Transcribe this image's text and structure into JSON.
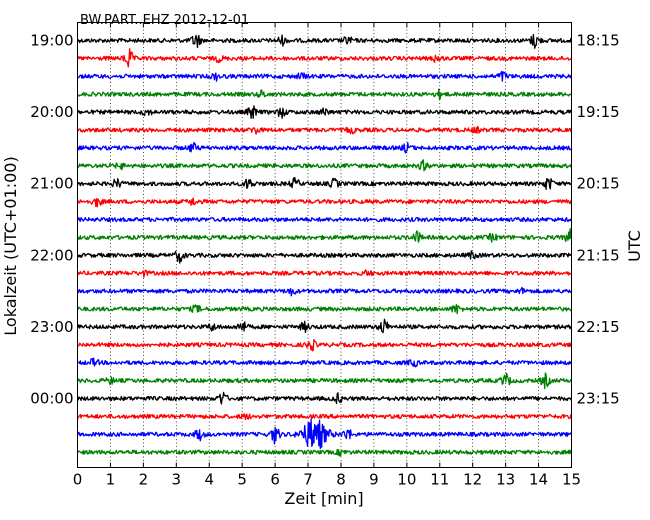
{
  "chart_data": {
    "type": "line",
    "title": "BW.PART..EHZ 2012-12-01",
    "xlabel": "Zeit  [min]",
    "ylabel_left": "Lokalzeit (UTC+01:00)",
    "ylabel_right": "UTC",
    "xlim": [
      0,
      15
    ],
    "x_ticks": [
      "0",
      "1",
      "2",
      "3",
      "4",
      "5",
      "6",
      "7",
      "8",
      "9",
      "10",
      "11",
      "12",
      "13",
      "14",
      "15"
    ],
    "grid": "vertical dotted lines at each minute",
    "left_ticks": [
      {
        "label": "19:00",
        "trace": 0
      },
      {
        "label": "20:00",
        "trace": 4
      },
      {
        "label": "21:00",
        "trace": 8
      },
      {
        "label": "22:00",
        "trace": 12
      },
      {
        "label": "23:00",
        "trace": 16
      },
      {
        "label": "00:00",
        "trace": 20
      }
    ],
    "right_ticks": [
      {
        "label": "18:15",
        "trace": 0
      },
      {
        "label": "19:15",
        "trace": 4
      },
      {
        "label": "20:15",
        "trace": 8
      },
      {
        "label": "21:15",
        "trace": 12
      },
      {
        "label": "22:15",
        "trace": 16
      },
      {
        "label": "23:15",
        "trace": 20
      }
    ],
    "trace_colors": [
      "#000000",
      "#ff0000",
      "#0000ff",
      "#008000"
    ],
    "traces": [
      {
        "index": 0,
        "color": "#000000",
        "events": [
          {
            "t": 3.6,
            "amp": 7
          },
          {
            "t": 6.2,
            "amp": 4
          },
          {
            "t": 8.2,
            "amp": 3.5
          },
          {
            "t": 13.9,
            "amp": 7
          }
        ]
      },
      {
        "index": 1,
        "color": "#ff0000",
        "events": [
          {
            "t": 1.55,
            "amp": 9
          },
          {
            "t": 4.3,
            "amp": 2.5
          },
          {
            "t": 10.9,
            "amp": 3
          }
        ]
      },
      {
        "index": 2,
        "color": "#0000ff",
        "events": [
          {
            "t": 4.2,
            "amp": 3
          },
          {
            "t": 6.8,
            "amp": 2.5
          },
          {
            "t": 12.9,
            "amp": 4
          }
        ]
      },
      {
        "index": 3,
        "color": "#008000",
        "events": [
          {
            "t": 5.6,
            "amp": 3
          },
          {
            "t": 11.0,
            "amp": 3.5
          }
        ]
      },
      {
        "index": 4,
        "color": "#000000",
        "events": [
          {
            "t": 2.1,
            "amp": 3
          },
          {
            "t": 5.3,
            "amp": 6
          },
          {
            "t": 6.2,
            "amp": 4.5
          },
          {
            "t": 7.5,
            "amp": 3
          }
        ]
      },
      {
        "index": 5,
        "color": "#ff0000",
        "events": [
          {
            "t": 5.4,
            "amp": 3
          },
          {
            "t": 8.3,
            "amp": 2.5
          },
          {
            "t": 12.1,
            "amp": 2
          }
        ]
      },
      {
        "index": 6,
        "color": "#0000ff",
        "events": [
          {
            "t": 3.5,
            "amp": 4
          },
          {
            "t": 10.0,
            "amp": 4
          }
        ]
      },
      {
        "index": 7,
        "color": "#008000",
        "events": [
          {
            "t": 1.3,
            "amp": 2.5
          },
          {
            "t": 10.5,
            "amp": 4
          }
        ]
      },
      {
        "index": 8,
        "color": "#000000",
        "events": [
          {
            "t": 1.2,
            "amp": 4
          },
          {
            "t": 5.2,
            "amp": 5
          },
          {
            "t": 6.6,
            "amp": 4.5
          },
          {
            "t": 7.8,
            "amp": 4
          },
          {
            "t": 14.3,
            "amp": 6
          }
        ]
      },
      {
        "index": 9,
        "color": "#ff0000",
        "events": [
          {
            "t": 0.6,
            "amp": 4
          },
          {
            "t": 3.5,
            "amp": 3
          }
        ]
      },
      {
        "index": 10,
        "color": "#0000ff",
        "events": []
      },
      {
        "index": 11,
        "color": "#008000",
        "events": [
          {
            "t": 10.3,
            "amp": 5
          },
          {
            "t": 12.6,
            "amp": 3
          },
          {
            "t": 14.95,
            "amp": 7
          }
        ]
      },
      {
        "index": 12,
        "color": "#000000",
        "events": [
          {
            "t": 3.1,
            "amp": 6
          },
          {
            "t": 12.0,
            "amp": 3
          }
        ]
      },
      {
        "index": 13,
        "color": "#ff0000",
        "events": [
          {
            "t": 2.0,
            "amp": 2
          },
          {
            "t": 8.8,
            "amp": 2
          }
        ]
      },
      {
        "index": 14,
        "color": "#0000ff",
        "events": [
          {
            "t": 6.5,
            "amp": 3
          },
          {
            "t": 13.5,
            "amp": 2
          }
        ]
      },
      {
        "index": 15,
        "color": "#008000",
        "events": [
          {
            "t": 3.6,
            "amp": 3
          },
          {
            "t": 11.5,
            "amp": 4
          }
        ]
      },
      {
        "index": 16,
        "color": "#000000",
        "events": [
          {
            "t": 4.1,
            "amp": 3
          },
          {
            "t": 5.0,
            "amp": 5
          },
          {
            "t": 6.9,
            "amp": 4
          },
          {
            "t": 9.3,
            "amp": 7
          }
        ]
      },
      {
        "index": 17,
        "color": "#ff0000",
        "events": [
          {
            "t": 7.1,
            "amp": 5
          }
        ]
      },
      {
        "index": 18,
        "color": "#0000ff",
        "events": [
          {
            "t": 0.5,
            "amp": 3
          },
          {
            "t": 10.2,
            "amp": 3
          }
        ]
      },
      {
        "index": 19,
        "color": "#008000",
        "events": [
          {
            "t": 1.0,
            "amp": 2.5
          },
          {
            "t": 13.0,
            "amp": 6
          },
          {
            "t": 14.2,
            "amp": 6
          }
        ]
      },
      {
        "index": 20,
        "color": "#000000",
        "events": [
          {
            "t": 4.4,
            "amp": 6
          },
          {
            "t": 7.9,
            "amp": 4
          }
        ]
      },
      {
        "index": 21,
        "color": "#ff0000",
        "events": [
          {
            "t": 5.1,
            "amp": 2
          }
        ]
      },
      {
        "index": 22,
        "color": "#0000ff",
        "events": [
          {
            "t": 3.7,
            "amp": 5
          },
          {
            "t": 6.0,
            "amp": 8
          },
          {
            "t": 7.2,
            "amp": 16
          },
          {
            "t": 8.2,
            "amp": 5
          }
        ]
      },
      {
        "index": 23,
        "color": "#008000",
        "events": [
          {
            "t": 8.0,
            "amp": 2
          }
        ]
      }
    ]
  }
}
